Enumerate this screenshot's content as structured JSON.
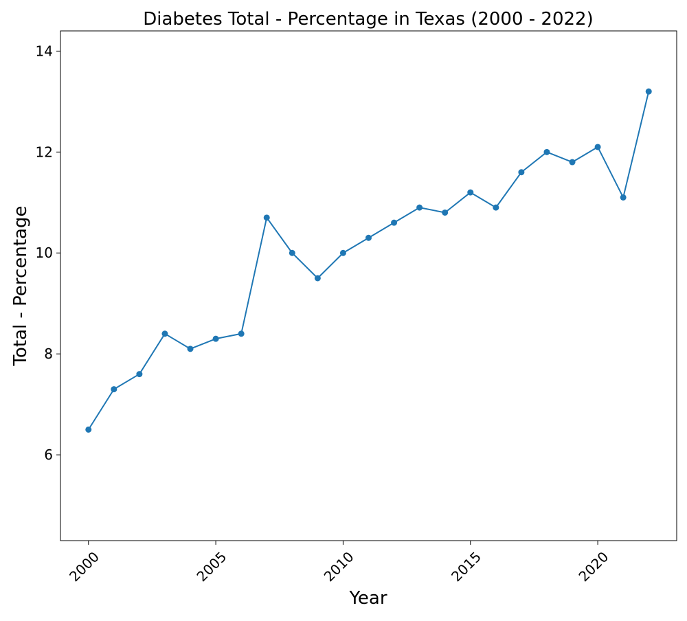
{
  "chart_data": {
    "type": "line",
    "title": "Diabetes Total - Percentage in Texas (2000 - 2022)",
    "xlabel": "Year",
    "ylabel": "Total - Percentage",
    "x": [
      2000,
      2001,
      2002,
      2003,
      2004,
      2005,
      2006,
      2007,
      2008,
      2009,
      2010,
      2011,
      2012,
      2013,
      2014,
      2015,
      2016,
      2017,
      2018,
      2019,
      2020,
      2021,
      2022
    ],
    "series": [
      {
        "values": [
          6.5,
          7.3,
          7.6,
          8.4,
          8.1,
          8.3,
          8.4,
          10.7,
          10.0,
          9.5,
          10.0,
          10.3,
          10.6,
          10.9,
          10.8,
          11.2,
          10.9,
          11.6,
          12.0,
          11.8,
          12.1,
          11.1,
          13.2
        ],
        "color": "#1f77b4",
        "marker": "circle"
      }
    ],
    "xticks": [
      "2000",
      "2005",
      "2010",
      "2015",
      "2020"
    ],
    "xtick_rotation": 45,
    "yticks": [
      "6",
      "8",
      "10",
      "12",
      "14"
    ],
    "xlim": [
      1998.9,
      2023.1
    ],
    "ylim": [
      4.3,
      14.4
    ],
    "grid": false,
    "legend": "none"
  }
}
